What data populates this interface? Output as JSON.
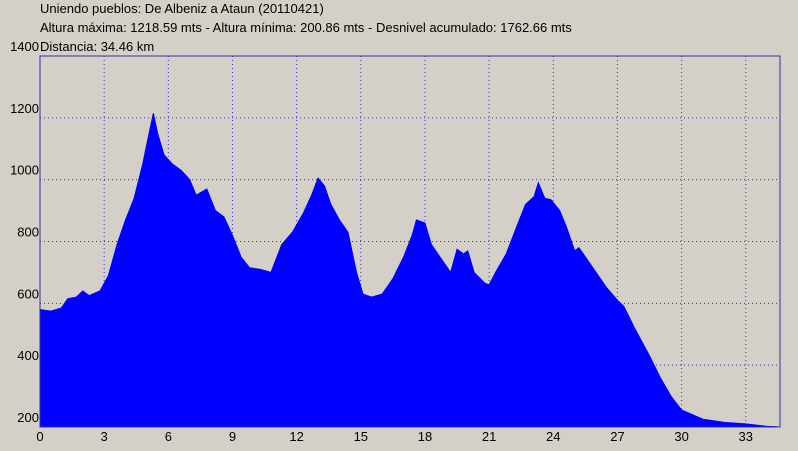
{
  "chart_data": {
    "type": "area",
    "title": "Uniendo pueblos: De Albeniz a Ataun (20110421)",
    "subtitle": "Altura máxima: 1218.59 mts - Altura mínima: 200.86 mts - Desnivel acumulado: 1762.66 mts",
    "caption": "Distancia: 34.46 km",
    "color": "#0000ff",
    "grid": true,
    "xlim": [
      0,
      34.6
    ],
    "ylim": [
      200,
      1400
    ],
    "xticks": [
      0,
      3,
      6,
      9,
      12,
      15,
      18,
      21,
      24,
      27,
      30,
      33
    ],
    "yticks": [
      200,
      400,
      600,
      800,
      1000,
      1200,
      1400
    ],
    "x": [
      0,
      0.5,
      1.0,
      1.3,
      1.7,
      2.0,
      2.3,
      2.8,
      3.2,
      3.6,
      4.0,
      4.4,
      4.8,
      5.1,
      5.3,
      5.5,
      5.8,
      6.2,
      6.6,
      7.0,
      7.3,
      7.8,
      8.2,
      8.6,
      9.0,
      9.4,
      9.8,
      10.3,
      10.8,
      11.3,
      11.8,
      12.3,
      12.7,
      13.0,
      13.3,
      13.6,
      14.0,
      14.4,
      14.8,
      15.1,
      15.5,
      16.0,
      16.5,
      17.0,
      17.4,
      17.6,
      18.0,
      18.3,
      18.8,
      19.2,
      19.5,
      19.8,
      20.0,
      20.3,
      20.8,
      21.0,
      21.3,
      21.8,
      22.3,
      22.7,
      23.1,
      23.3,
      23.6,
      23.9,
      24.3,
      24.6,
      25.0,
      25.2,
      25.6,
      26.0,
      26.5,
      27.0,
      27.3,
      27.8,
      28.5,
      29.0,
      29.5,
      30.0,
      30.5,
      31.0,
      32.0,
      33.0,
      34.0,
      34.46
    ],
    "values": [
      580,
      575,
      585,
      615,
      620,
      640,
      625,
      640,
      690,
      790,
      870,
      940,
      1050,
      1150,
      1215,
      1150,
      1080,
      1050,
      1030,
      1000,
      950,
      970,
      900,
      880,
      820,
      750,
      715,
      710,
      700,
      790,
      830,
      890,
      950,
      1005,
      980,
      920,
      870,
      830,
      700,
      630,
      620,
      630,
      680,
      750,
      820,
      870,
      860,
      790,
      740,
      700,
      775,
      760,
      770,
      700,
      665,
      660,
      700,
      760,
      850,
      920,
      945,
      990,
      940,
      935,
      900,
      850,
      770,
      780,
      740,
      700,
      650,
      610,
      590,
      520,
      430,
      360,
      300,
      255,
      240,
      225,
      215,
      210,
      202,
      201
    ]
  }
}
